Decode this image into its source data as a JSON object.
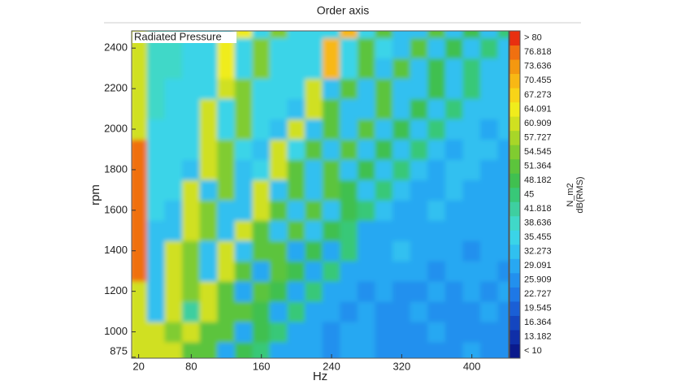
{
  "chart_data": {
    "type": "heatmap",
    "title": "Order axis",
    "label": "Radiated Pressure",
    "x_label": "Hz",
    "y_label": "rpm",
    "x": [
      20,
      40,
      60,
      80,
      100,
      120,
      140,
      160,
      180,
      200,
      220,
      240,
      260,
      280,
      300,
      320,
      340,
      360,
      380,
      400,
      420,
      440
    ],
    "y": [
      900,
      1000,
      1100,
      1200,
      1300,
      1400,
      1500,
      1600,
      1700,
      1800,
      1900,
      2000,
      2100,
      2200,
      2300,
      2400,
      2500
    ],
    "z": [
      [
        62,
        64,
        64,
        54,
        52,
        31,
        50,
        48,
        30,
        32,
        30,
        29,
        30,
        31,
        28,
        27,
        26,
        28,
        29,
        30,
        28,
        27
      ],
      [
        62,
        64,
        56,
        64,
        54,
        52,
        31,
        50,
        48,
        30,
        32,
        29,
        31,
        30,
        28,
        29,
        27,
        30,
        28,
        26,
        29,
        28
      ],
      [
        62,
        34,
        64,
        44,
        64,
        54,
        52,
        50,
        31,
        48,
        30,
        32,
        29,
        30,
        29,
        28,
        30,
        27,
        29,
        28,
        30,
        28
      ],
      [
        62,
        33,
        64,
        56,
        64,
        54,
        32,
        52,
        50,
        31,
        48,
        30,
        32,
        29,
        30,
        28,
        29,
        31,
        28,
        30,
        29,
        31
      ],
      [
        78,
        34,
        64,
        56,
        33,
        64,
        54,
        32,
        52,
        50,
        31,
        48,
        31,
        30,
        32,
        30,
        31,
        29,
        30,
        31,
        30,
        29
      ],
      [
        78,
        35,
        64,
        56,
        34,
        64,
        33,
        54,
        52,
        32,
        50,
        31,
        48,
        32,
        31,
        33,
        30,
        31,
        30,
        29,
        31,
        30
      ],
      [
        78,
        35,
        34,
        64,
        56,
        33,
        64,
        54,
        34,
        52,
        33,
        50,
        48,
        32,
        31,
        32,
        30,
        31,
        32,
        30,
        31,
        30
      ],
      [
        78,
        36,
        35,
        64,
        56,
        34,
        33,
        64,
        54,
        34,
        52,
        33,
        50,
        48,
        33,
        32,
        31,
        33,
        32,
        31,
        30,
        32
      ],
      [
        78,
        37,
        36,
        64,
        35,
        56,
        34,
        64,
        35,
        54,
        34,
        52,
        50,
        33,
        48,
        33,
        32,
        31,
        33,
        32,
        31,
        32
      ],
      [
        78,
        37,
        36,
        35,
        64,
        56,
        35,
        36,
        64,
        54,
        34,
        52,
        35,
        50,
        33,
        48,
        33,
        32,
        34,
        33,
        32,
        31
      ],
      [
        78,
        38,
        37,
        36,
        64,
        56,
        36,
        35,
        64,
        36,
        54,
        35,
        52,
        34,
        50,
        33,
        48,
        33,
        32,
        34,
        33,
        32
      ],
      [
        62,
        38,
        37,
        36,
        64,
        37,
        56,
        36,
        35,
        64,
        35,
        54,
        34,
        52,
        34,
        50,
        33,
        48,
        33,
        34,
        32,
        33
      ],
      [
        62,
        39,
        38,
        37,
        64,
        36,
        56,
        37,
        36,
        35,
        64,
        54,
        35,
        34,
        52,
        34,
        50,
        33,
        48,
        33,
        34,
        33
      ],
      [
        62,
        39,
        38,
        37,
        36,
        64,
        56,
        38,
        37,
        36,
        64,
        35,
        54,
        35,
        52,
        34,
        33,
        50,
        34,
        48,
        33,
        34
      ],
      [
        62,
        40,
        39,
        38,
        37,
        66,
        38,
        56,
        37,
        36,
        38,
        72,
        36,
        54,
        35,
        52,
        34,
        50,
        35,
        48,
        34,
        33
      ],
      [
        62,
        40,
        39,
        38,
        37,
        66,
        38,
        56,
        38,
        37,
        38,
        72,
        37,
        54,
        36,
        35,
        52,
        35,
        50,
        34,
        48,
        34
      ],
      [
        62,
        40,
        39,
        38,
        37,
        38,
        66,
        38,
        56,
        37,
        38,
        36,
        72,
        36,
        54,
        35,
        34,
        52,
        34,
        50,
        34,
        48
      ]
    ],
    "xlim": [
      12,
      442
    ],
    "ylim": [
      870,
      2485
    ],
    "xticks": [
      20,
      80,
      160,
      240,
      320,
      400
    ],
    "yticks": [
      875,
      1000,
      1200,
      1400,
      1600,
      1800,
      2000,
      2200,
      2400
    ],
    "colorbar": {
      "levels": [
        {
          "value": 10,
          "label": "< 10"
        },
        13.182,
        16.364,
        19.545,
        22.727,
        25.909,
        29.091,
        32.273,
        35.455,
        38.636,
        41.818,
        45,
        48.182,
        51.364,
        54.545,
        57.727,
        60.909,
        64.091,
        67.273,
        70.455,
        73.636,
        76.818,
        {
          "value": 80,
          "label": "> 80"
        }
      ],
      "colors": [
        "#0a1a8c",
        "#0f2fa8",
        "#1446c0",
        "#1a5fd6",
        "#1e78e6",
        "#2290ee",
        "#28a8f2",
        "#30c0f0",
        "#3ad4e8",
        "#40d8c8",
        "#3ecfa0",
        "#38c878",
        "#40c050",
        "#5cc43c",
        "#80cc30",
        "#a8d628",
        "#d0e020",
        "#f0ec1c",
        "#f8d418",
        "#f8b814",
        "#f49810",
        "#f07010",
        "#e83010"
      ],
      "unit_labels": [
        "N_m2",
        "dB(RMS)"
      ]
    }
  }
}
